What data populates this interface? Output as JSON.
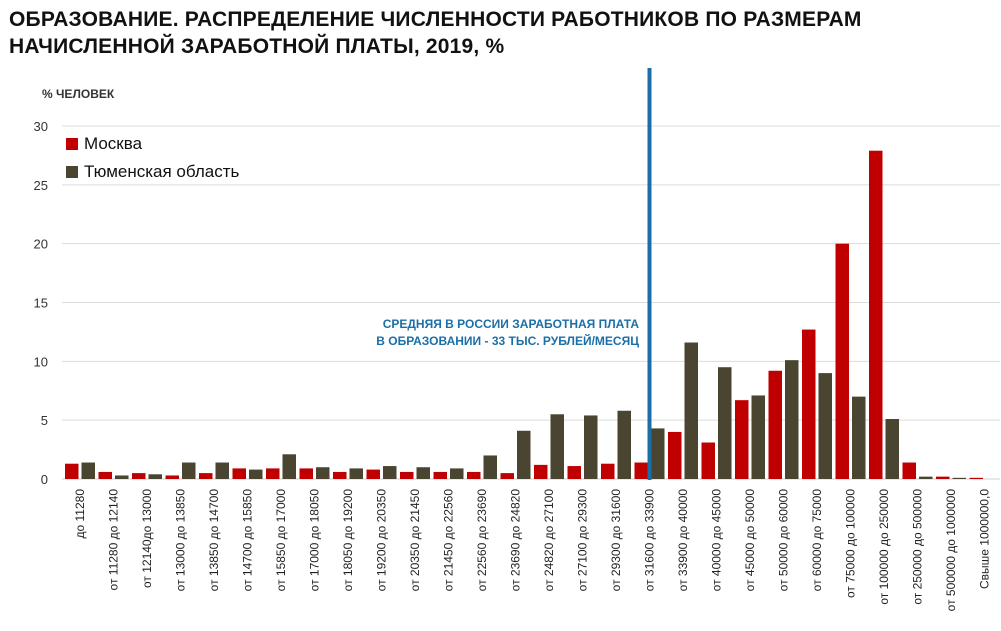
{
  "title": {
    "line1": "ОБРАЗОВАНИЕ. РАСПРЕДЕЛЕНИЕ ЧИСЛЕННОСТИ РАБОТНИКОВ ПО РАЗМЕРАМ",
    "line2": "НАЧИСЛЕННОЙ ЗАРАБОТНОЙ ПЛАТЫ, 2019, %"
  },
  "y_axis_label": "% ЧЕЛОВЕК",
  "legend": [
    {
      "label": "Москва",
      "color": "#c00000"
    },
    {
      "label": "Тюменская область",
      "color": "#4a4530"
    }
  ],
  "annotation": {
    "line1": "СРЕДНЯЯ В РОССИИ ЗАРАБОТНАЯ ПЛАТА",
    "line2": "В ОБРАЗОВАНИИ - 33 ТЫС. РУБЛЕЙ/МЕСЯЦ",
    "color": "#1b6fa8",
    "marker_category_index": 17
  },
  "chart_data": {
    "type": "bar",
    "title": "ОБРАЗОВАНИЕ. РАСПРЕДЕЛЕНИЕ ЧИСЛЕННОСТИ РАБОТНИКОВ ПО РАЗМЕРАМ НАЧИСЛЕННОЙ ЗАРАБОТНОЙ ПЛАТЫ, 2019, %",
    "xlabel": "",
    "ylabel": "% ЧЕЛОВЕК",
    "ylim": [
      0,
      30
    ],
    "yticks": [
      0,
      5,
      10,
      15,
      20,
      25,
      30
    ],
    "grid": true,
    "legend_position": "top-left",
    "categories": [
      "до  11280",
      "от 11280 до 12140",
      "от 12140до 13000",
      "от 13000 до 13850",
      "от 13850 до 14700",
      "от 14700 до 15850",
      "от 15850 до 17000",
      "от 17000  до 18050",
      "от 18050 до 19200",
      "от 19200 до 20350",
      "от 20350 до 21450",
      "от 21450 до 22560",
      "от 22560 до 23690",
      "от 23690 до 24820",
      "от 24820 до 27100",
      "от 27100 до 29300",
      "от 29300 до 31600",
      "от 31600 до 33900",
      "от 33900 до 40000",
      "от 40000 до 45000",
      "от 45000 до 50000",
      "от 50000 до 60000",
      "от 60000 до 75000",
      "от 75000 до 100000",
      "от 100000 до 250000",
      "от 250000 до 500000",
      "от 500000 до 1000000",
      "Свыше 1000000,0"
    ],
    "series": [
      {
        "name": "Москва",
        "color": "#c00000",
        "values": [
          1.3,
          0.6,
          0.5,
          0.3,
          0.5,
          0.9,
          0.9,
          0.9,
          0.6,
          0.8,
          0.6,
          0.6,
          0.6,
          0.5,
          1.2,
          1.1,
          1.3,
          1.4,
          4.0,
          3.1,
          6.7,
          9.2,
          12.7,
          20.0,
          27.9,
          1.4,
          0.2,
          0.1
        ]
      },
      {
        "name": "Тюменская область",
        "color": "#4a4530",
        "values": [
          1.4,
          0.3,
          0.4,
          1.4,
          1.4,
          0.8,
          2.1,
          1.0,
          0.9,
          1.1,
          1.0,
          0.9,
          2.0,
          4.1,
          5.5,
          5.4,
          5.8,
          4.3,
          11.6,
          9.5,
          7.1,
          10.1,
          9.0,
          7.0,
          5.1,
          0.2,
          0.1,
          0.0
        ]
      }
    ],
    "annotations": [
      {
        "type": "vertical-line",
        "position": "between Москва and Тюменская область bars of 'от 31600 до 33900'",
        "text": "СРЕДНЯЯ В РОССИИ ЗАРАБОТНАЯ ПЛАТА В ОБРАЗОВАНИИ - 33 ТЫС. РУБЛЕЙ/МЕСЯЦ"
      }
    ]
  }
}
